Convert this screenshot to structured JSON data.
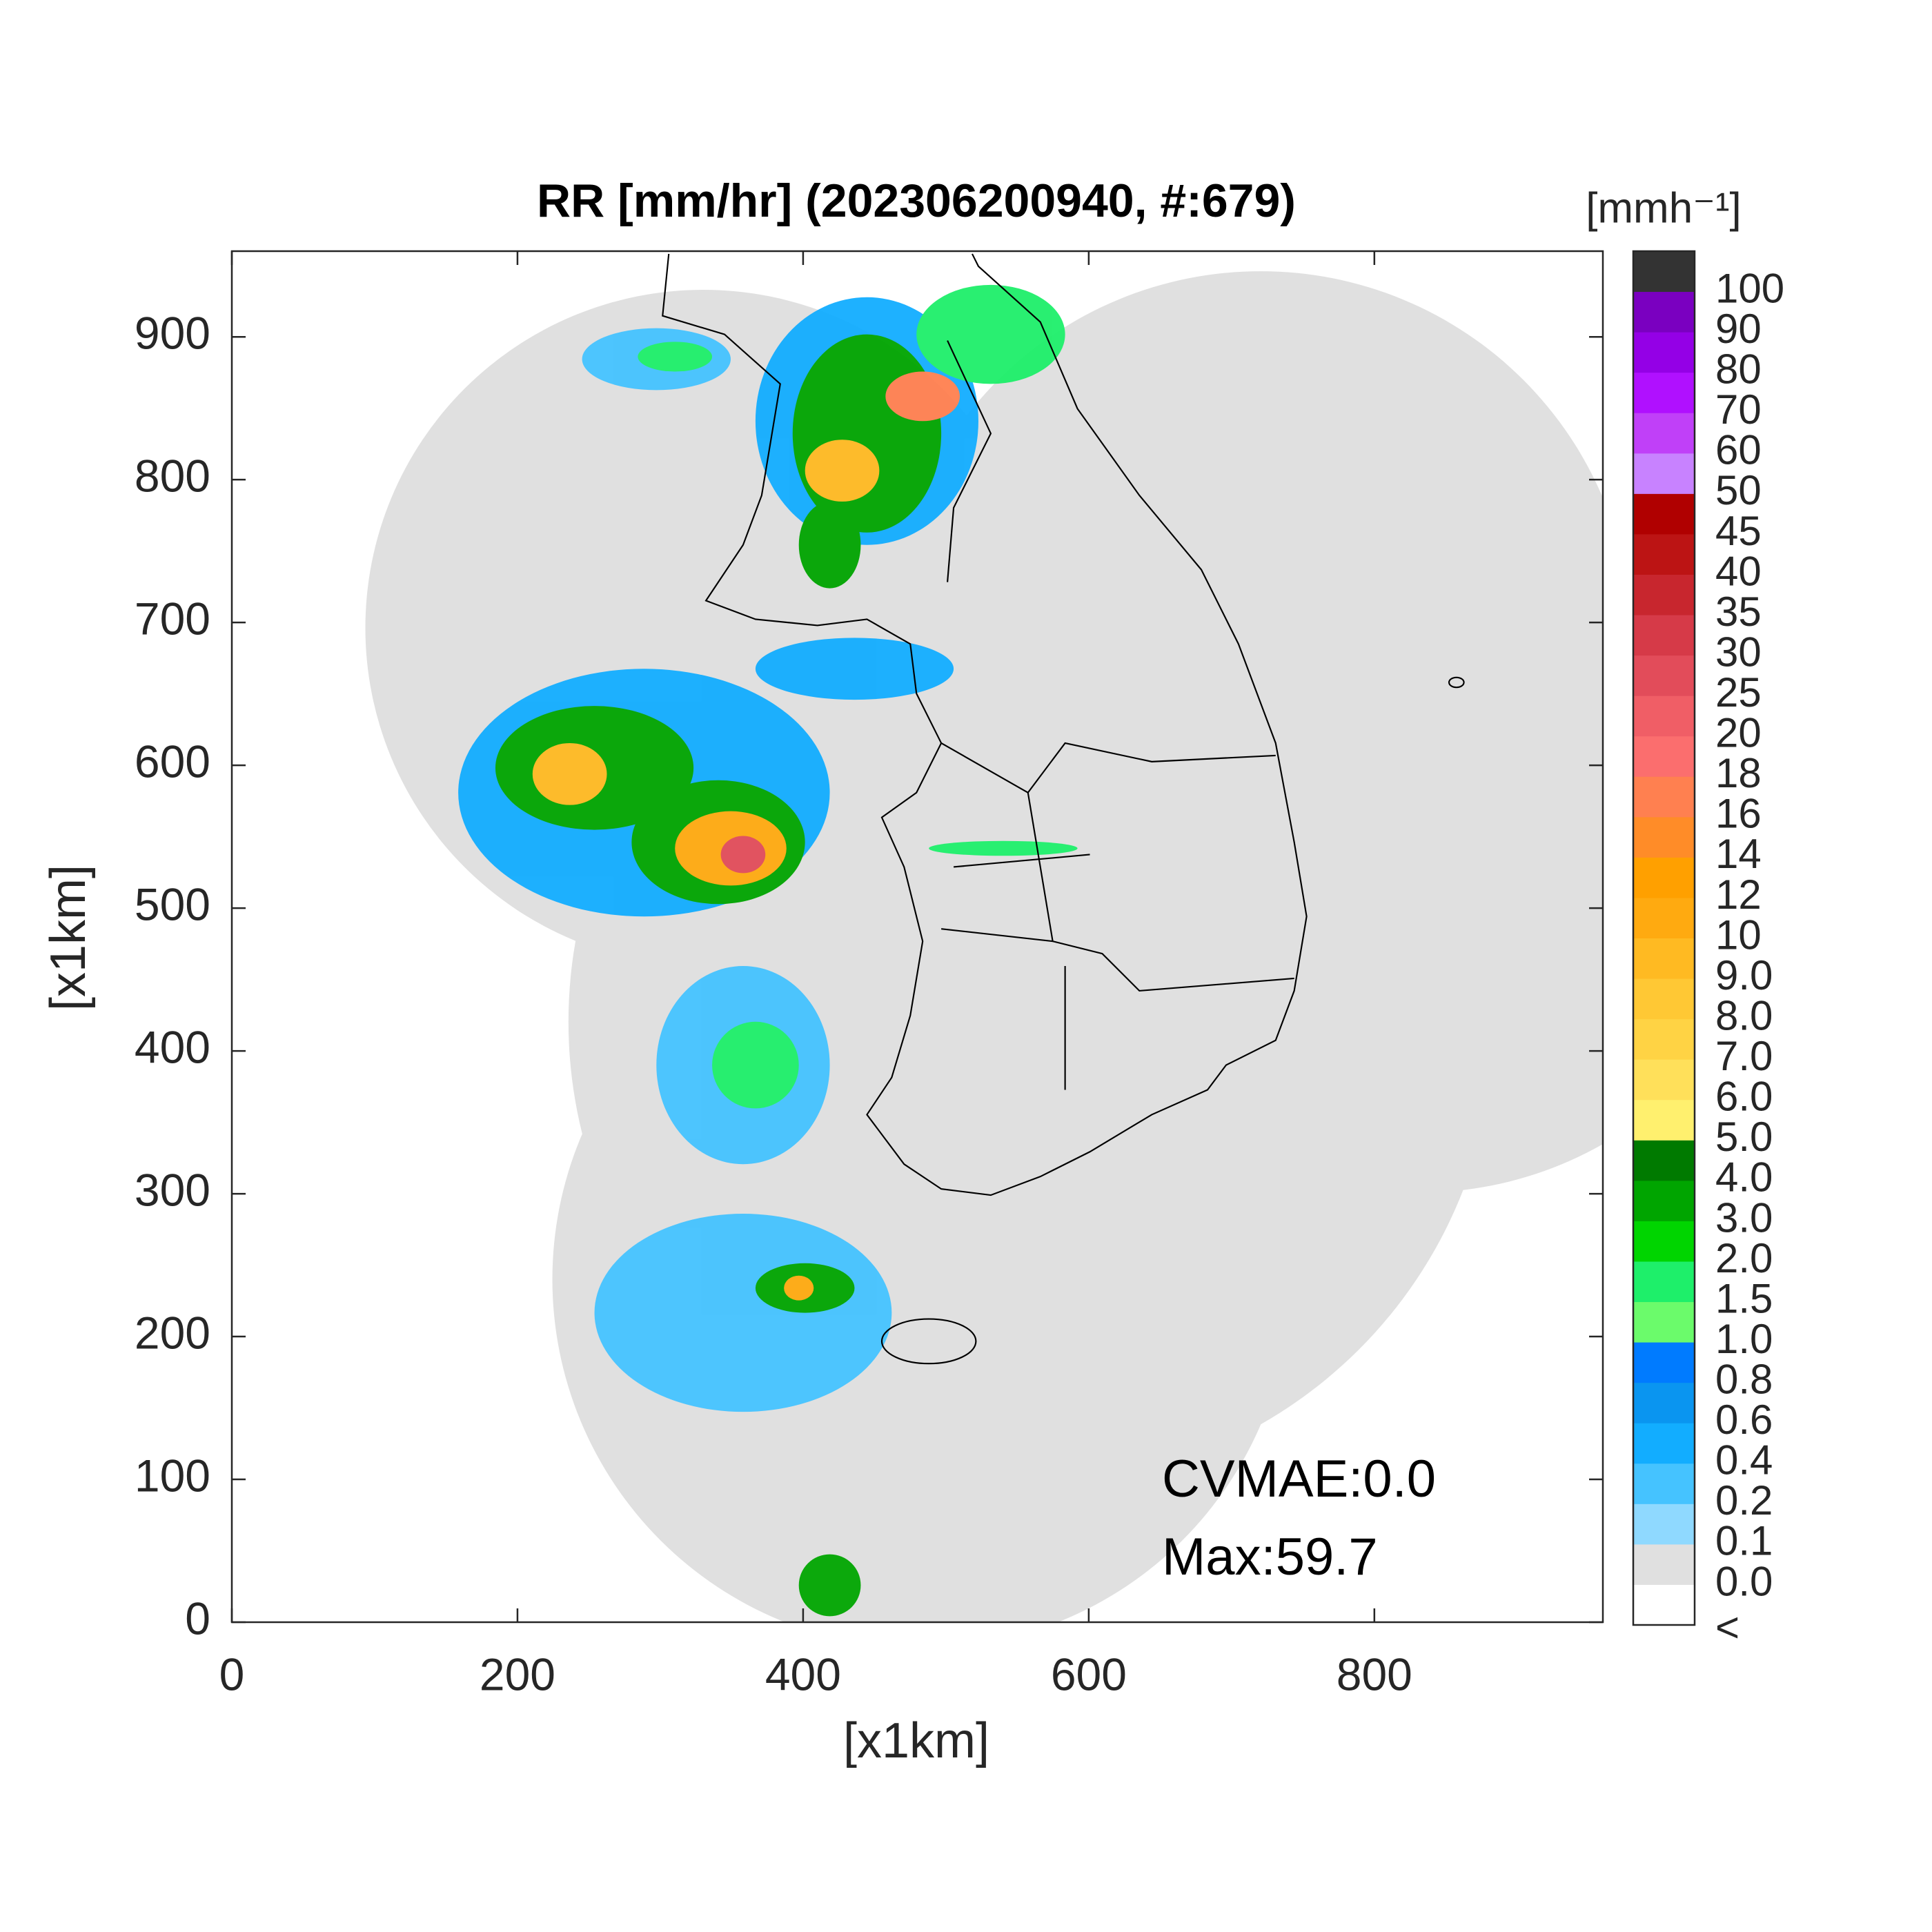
{
  "chart_data": {
    "type": "radar-map",
    "title": "RR [mm/hr] (202306200940, #:679)",
    "xlabel": "[x1km]",
    "ylabel": "[x1km]",
    "xlim": [
      0,
      960
    ],
    "ylim": [
      0,
      960
    ],
    "xticks": [
      0,
      200,
      400,
      600,
      800
    ],
    "yticks": [
      0,
      100,
      200,
      300,
      400,
      500,
      600,
      700,
      800,
      900
    ],
    "annotations": [
      "CVMAE:0.0",
      "Max:59.7"
    ],
    "colorbar": {
      "label": "[mmh⁻¹]",
      "levels": [
        "<",
        "0.0",
        "0.1",
        "0.2",
        "0.4",
        "0.6",
        "0.8",
        "1.0",
        "1.5",
        "2.0",
        "3.0",
        "4.0",
        "5.0",
        "6.0",
        "7.0",
        "8.0",
        "9.0",
        "10",
        "12",
        "14",
        "16",
        "18",
        "20",
        "25",
        "30",
        "35",
        "40",
        "45",
        "50",
        "60",
        "70",
        "80",
        "90",
        "100"
      ],
      "colors": [
        "#ffffff",
        "#e0e0e0",
        "#8fd9ff",
        "#45c3ff",
        "#12adff",
        "#0a95f0",
        "#007bff",
        "#6bfb6b",
        "#1eef6a",
        "#00d500",
        "#00a500",
        "#007a00",
        "#fff06e",
        "#ffe05a",
        "#ffd344",
        "#ffc834",
        "#ffba22",
        "#ffaa10",
        "#ffa000",
        "#ff8c28",
        "#ff8050",
        "#fb6e6e",
        "#f05e66",
        "#e24c5a",
        "#d63a48",
        "#c8262e",
        "#bc1414",
        "#b00000",
        "#c882ff",
        "#c040f8",
        "#b010ff",
        "#9400e6",
        "#7a00c0",
        "#333333"
      ]
    }
  }
}
